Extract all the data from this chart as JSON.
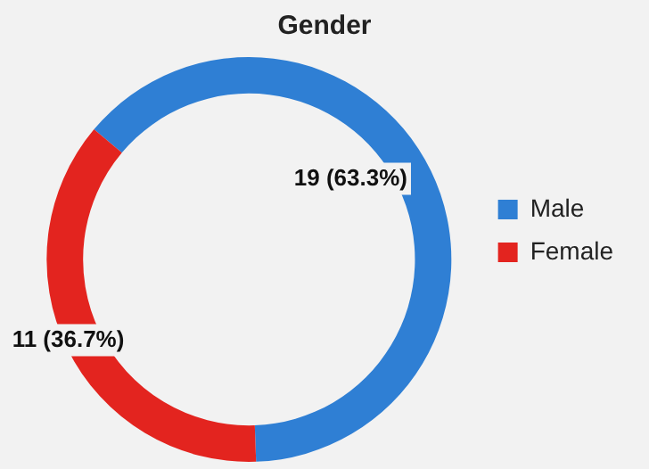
{
  "chart_data": {
    "type": "donut",
    "title": "Gender",
    "categories": [
      "Male",
      "Female"
    ],
    "values": [
      19,
      11
    ],
    "colors": [
      "#2f7fd4",
      "#e3241f"
    ],
    "value_labels": [
      "19 (63.3%)",
      "11 (36.7%)"
    ],
    "legend": "right"
  }
}
